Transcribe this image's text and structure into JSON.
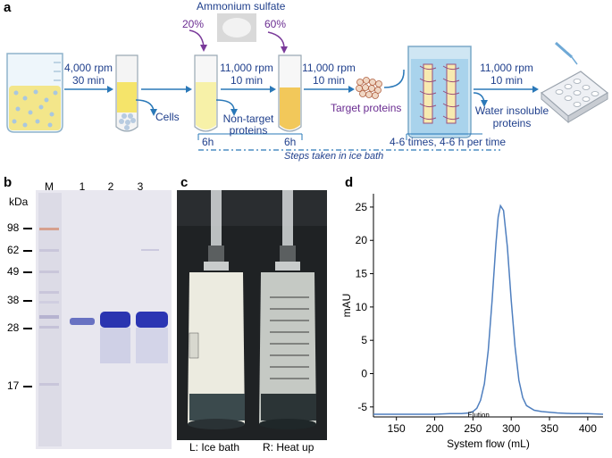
{
  "panel_a": {
    "label": "a",
    "step1": {
      "line1": "4,000 rpm",
      "line2": "30 min"
    },
    "cells": "Cells",
    "ammonium": "Ammonium sulfate",
    "pct20": "20%",
    "pct60": "60%",
    "step2": {
      "line1": "11,000 rpm",
      "line2": "10 min"
    },
    "nontarget": {
      "line1": "Non-target",
      "line2": "proteins"
    },
    "step3": {
      "line1": "11,000 rpm",
      "line2": "10 min"
    },
    "target": "Target proteins",
    "step4": {
      "line1": "11,000 rpm",
      "line2": "10 min"
    },
    "waterinsol": {
      "line1": "Water insoluble",
      "line2": "proteins"
    },
    "time1": "6h",
    "time2": "6h",
    "dialysis": "4-6 times, 4-6 h per time",
    "icebath": "Steps taken in ice bath"
  },
  "panel_b": {
    "label": "b",
    "kda": "kDa",
    "lanes": [
      "M",
      "1",
      "2",
      "3"
    ],
    "markers": [
      "98",
      "62",
      "49",
      "38",
      "28",
      "17"
    ]
  },
  "panel_c": {
    "label": "c",
    "left": "L: Ice bath",
    "right": "R: Heat up"
  },
  "panel_d": {
    "label": "d",
    "annotation": "Elution"
  },
  "chart_data": {
    "type": "line",
    "xlabel": "System flow (mL)",
    "ylabel": "mAU",
    "xlim": [
      120,
      420
    ],
    "ylim": [
      -6.5,
      27
    ],
    "xticks": [
      150,
      200,
      250,
      300,
      350,
      400
    ],
    "yticks": [
      -5,
      0,
      5,
      10,
      15,
      20,
      25
    ],
    "x": [
      120,
      150,
      180,
      200,
      220,
      235,
      245,
      250,
      255,
      260,
      265,
      270,
      275,
      280,
      283,
      286,
      290,
      295,
      300,
      305,
      310,
      315,
      320,
      330,
      340,
      360,
      380,
      400,
      420
    ],
    "y": [
      -6.1,
      -6.1,
      -6.1,
      -6.1,
      -6.0,
      -6.0,
      -5.9,
      -5.7,
      -5.2,
      -4.0,
      -1.5,
      3.5,
      11.0,
      19.5,
      23.5,
      25.2,
      24.5,
      19.0,
      11.0,
      4.0,
      -1.0,
      -3.6,
      -4.8,
      -5.5,
      -5.7,
      -5.9,
      -6.0,
      -6.0,
      -6.1
    ]
  }
}
